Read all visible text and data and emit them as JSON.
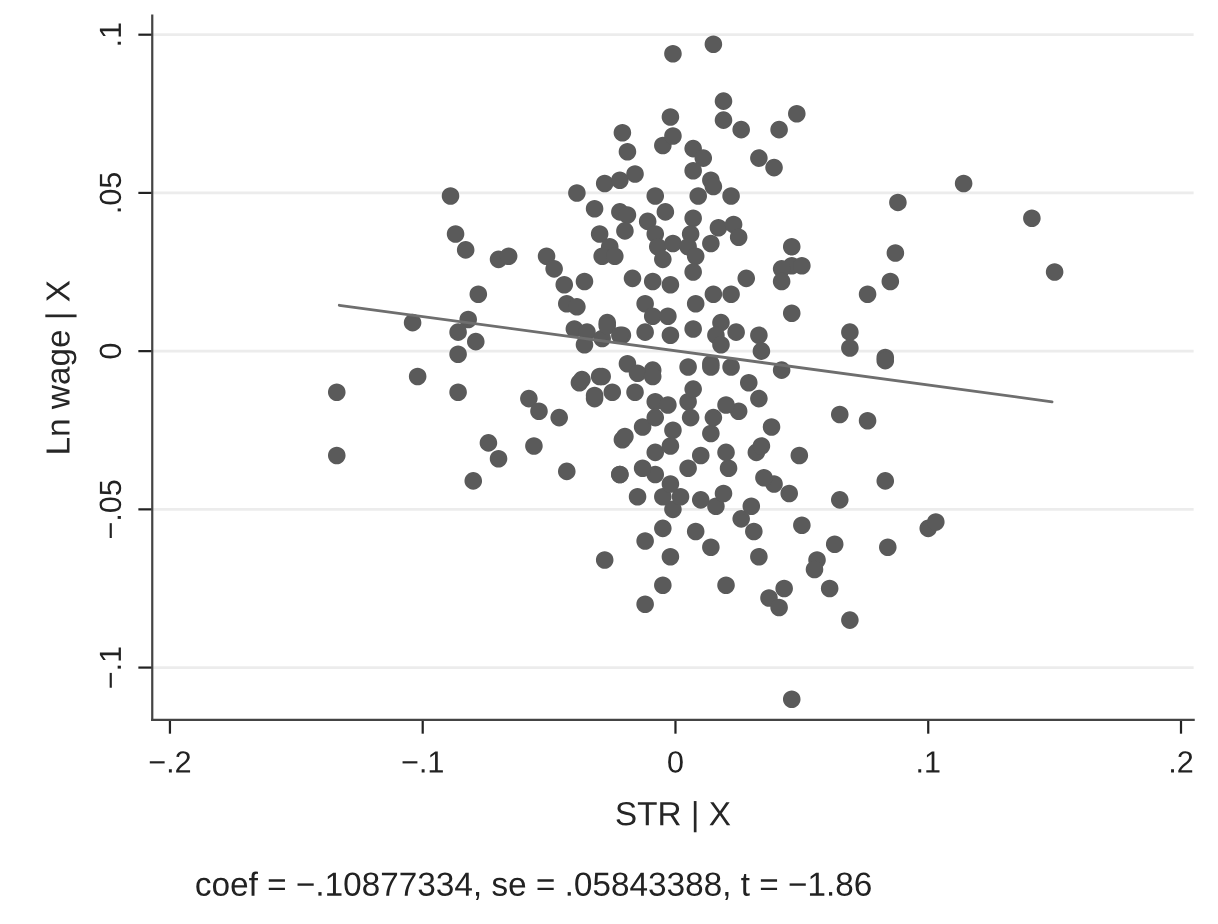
{
  "chart_data": {
    "type": "scatter",
    "xlabel": "STR | X",
    "ylabel": "Ln wage | X",
    "annotations": [
      "coef = −.10877334, se = .05843388, t = −1.86"
    ],
    "xlim": [
      -0.207,
      0.205
    ],
    "ylim": [
      -0.1165,
      0.106
    ],
    "xticks": [
      {
        "value": -0.2,
        "label": "−.2"
      },
      {
        "value": -0.1,
        "label": "−.1"
      },
      0,
      {
        "value": 0.1,
        "label": ".1"
      },
      {
        "value": 0.2,
        "label": ".2"
      }
    ],
    "yticks": [
      {
        "value": -0.1,
        "label": "−.1"
      },
      {
        "value": -0.05,
        "label": "−.05"
      },
      0,
      {
        "value": 0.05,
        "label": ".05"
      },
      {
        "value": 0.1,
        "label": ".1"
      }
    ],
    "grid": "y",
    "marker": "circle",
    "series": [
      {
        "color": "#5a5a5a",
        "x": [
          -0.089,
          -0.087,
          -0.083,
          -0.104,
          -0.082,
          -0.078,
          -0.086,
          -0.079,
          -0.086,
          -0.07,
          -0.066,
          -0.051,
          -0.048,
          -0.039,
          -0.032,
          -0.028,
          -0.021,
          -0.03,
          -0.044,
          -0.036,
          -0.043,
          -0.039,
          -0.04,
          -0.035,
          -0.036,
          -0.029,
          -0.027,
          -0.021,
          -0.134,
          -0.134,
          -0.102,
          -0.086,
          -0.074,
          -0.07,
          -0.08,
          -0.056,
          -0.058,
          -0.054,
          -0.046,
          -0.043,
          -0.038,
          -0.03,
          -0.032,
          -0.025,
          -0.021,
          -0.022,
          -0.028,
          -0.001,
          0.015,
          0.019,
          0.019,
          -0.002,
          -0.019,
          -0.005,
          -0.001,
          0.007,
          0.011,
          0.026,
          0.041,
          0.048,
          0.033,
          0.039,
          0.007,
          0.014,
          0.015,
          0.022,
          -0.022,
          -0.016,
          -0.008,
          0.009,
          -0.022,
          -0.019,
          -0.004,
          0.007,
          -0.011,
          -0.02,
          -0.008,
          0.006,
          0.017,
          0.023,
          0.025,
          -0.026,
          -0.007,
          -0.001,
          0.005,
          0.014,
          0.046,
          -0.029,
          -0.024,
          -0.005,
          0.008,
          0.088,
          0.114,
          0.141,
          0.15,
          0.087,
          0.085,
          0.076,
          0.069,
          0.069,
          0.083,
          0.046,
          0.05,
          0.042,
          0.042,
          0.046,
          0.033,
          0.034,
          0.042,
          0.022,
          0.005,
          -0.017,
          -0.009,
          -0.002,
          0.007,
          0.015,
          0.022,
          0.028,
          -0.012,
          0.008,
          -0.009,
          -0.003,
          0.018,
          -0.027,
          -0.022,
          -0.012,
          -0.002,
          0.007,
          0.016,
          0.024,
          -0.019,
          -0.009,
          0.014,
          0.018,
          0.083,
          0.065,
          0.076,
          0.083,
          0.065,
          0.084,
          0.1,
          0.103,
          0.069,
          0.046,
          0.061,
          0.063,
          0.056,
          0.055,
          0.05,
          0.043,
          0.037,
          0.041,
          0.02,
          -0.005,
          -0.012,
          -0.002,
          0.033,
          0.014,
          0.008,
          0.031,
          0.026,
          -0.012,
          -0.005,
          0.03,
          0.016,
          0.01,
          0.019,
          -0.001,
          0.045,
          0.039,
          0.035,
          0.049,
          -0.022,
          -0.015,
          -0.005,
          0.002,
          -0.002,
          0.005,
          -0.008,
          -0.013,
          0.021,
          0.01,
          0.02,
          0.032,
          0.034,
          0.038,
          -0.008,
          -0.002,
          -0.02,
          -0.013,
          -0.001,
          0.014,
          0.015,
          0.025,
          0.02,
          0.033,
          0.029,
          -0.032,
          -0.016,
          -0.008,
          -0.003,
          0.005,
          0.007,
          -0.008,
          0.006,
          -0.015,
          -0.009,
          -0.029,
          0.014,
          -0.037
        ],
        "values": [
          0.049,
          0.037,
          0.032,
          0.009,
          0.01,
          0.018,
          0.006,
          0.003,
          -0.001,
          0.029,
          0.03,
          0.03,
          0.026,
          0.05,
          0.045,
          0.053,
          0.069,
          0.037,
          0.021,
          0.022,
          0.015,
          0.014,
          0.007,
          0.006,
          0.002,
          0.004,
          0.009,
          0.005,
          -0.013,
          -0.033,
          -0.008,
          -0.013,
          -0.029,
          -0.034,
          -0.041,
          -0.03,
          -0.015,
          -0.019,
          -0.021,
          -0.038,
          -0.01,
          -0.008,
          -0.015,
          -0.013,
          -0.028,
          -0.039,
          -0.066,
          0.094,
          0.097,
          0.079,
          0.073,
          0.074,
          0.063,
          0.065,
          0.068,
          0.064,
          0.061,
          0.07,
          0.07,
          0.075,
          0.061,
          0.058,
          0.057,
          0.054,
          0.052,
          0.049,
          0.054,
          0.056,
          0.049,
          0.049,
          0.044,
          0.043,
          0.044,
          0.042,
          0.041,
          0.038,
          0.037,
          0.037,
          0.039,
          0.04,
          0.036,
          0.033,
          0.033,
          0.034,
          0.033,
          0.034,
          0.033,
          0.03,
          0.03,
          0.029,
          0.03,
          0.047,
          0.053,
          0.042,
          0.025,
          0.031,
          0.022,
          0.018,
          0.006,
          0.001,
          -0.002,
          0.027,
          0.027,
          0.026,
          0.022,
          0.012,
          0.005,
          0.0,
          -0.006,
          -0.005,
          -0.005,
          0.023,
          0.022,
          0.021,
          0.025,
          0.018,
          0.018,
          0.023,
          0.015,
          0.015,
          0.011,
          0.011,
          0.009,
          0.008,
          0.005,
          0.006,
          0.005,
          0.007,
          0.005,
          0.006,
          -0.004,
          -0.006,
          -0.004,
          0.002,
          -0.003,
          -0.02,
          -0.022,
          -0.041,
          -0.047,
          -0.062,
          -0.056,
          -0.054,
          -0.085,
          -0.11,
          -0.075,
          -0.061,
          -0.066,
          -0.069,
          -0.055,
          -0.075,
          -0.078,
          -0.081,
          -0.074,
          -0.074,
          -0.08,
          -0.065,
          -0.065,
          -0.062,
          -0.057,
          -0.057,
          -0.053,
          -0.06,
          -0.056,
          -0.049,
          -0.049,
          -0.047,
          -0.045,
          -0.05,
          -0.045,
          -0.042,
          -0.04,
          -0.033,
          -0.039,
          -0.046,
          -0.046,
          -0.046,
          -0.042,
          -0.037,
          -0.039,
          -0.037,
          -0.037,
          -0.033,
          -0.032,
          -0.032,
          -0.03,
          -0.024,
          -0.032,
          -0.03,
          -0.027,
          -0.024,
          -0.025,
          -0.026,
          -0.021,
          -0.019,
          -0.017,
          -0.015,
          -0.01,
          -0.014,
          -0.013,
          -0.016,
          -0.017,
          -0.016,
          -0.012,
          -0.021,
          -0.021,
          -0.007,
          -0.008,
          -0.008,
          -0.005,
          -0.009
        ]
      },
      {
        "type": "line",
        "color": "#6e6e6e",
        "marker": "none",
        "line_style": "solid",
        "x": [
          -0.133,
          0.149
        ],
        "values": [
          0.0145,
          -0.016
        ]
      }
    ]
  }
}
